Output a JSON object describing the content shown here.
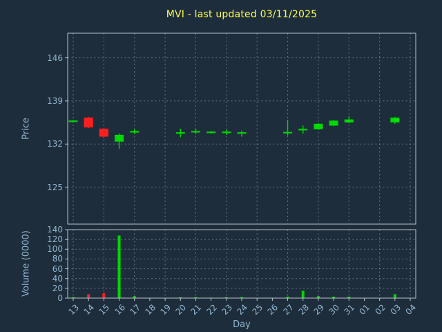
{
  "title": "MVI - last updated 03/11/2025",
  "xlabel": "Day",
  "price_chart": {
    "ylabel": "Price",
    "yticks": [
      125,
      132,
      139,
      146
    ],
    "ylim": [
      119,
      150
    ]
  },
  "volume_chart": {
    "ylabel": "Volume (0000)",
    "yticks": [
      0,
      20,
      40,
      60,
      80,
      100,
      120,
      140
    ],
    "ylim": [
      0,
      140
    ]
  },
  "colors": {
    "bg": "#1e2d3b",
    "title": "#ffff4a",
    "tick": "#92b8d4",
    "grid": "#9fb0bf",
    "frame": "#b9c4cd",
    "up": "#00d900",
    "down": "#ff1f1f"
  },
  "chart_data": {
    "type": "candlestick_with_volume",
    "title": "MVI - last updated 03/11/2025",
    "xlabel": "Day",
    "x_categories": [
      "13",
      "14",
      "15",
      "16",
      "17",
      "18",
      "19",
      "20",
      "21",
      "22",
      "23",
      "24",
      "25",
      "26",
      "27",
      "28",
      "29",
      "30",
      "31",
      "01",
      "02",
      "03",
      "04"
    ],
    "grid": "dashed, vertical lines every other day tick, horizontal lines at all y ticks",
    "legend": "none",
    "series": [
      {
        "day": "13",
        "open": 135.7,
        "high": 135.9,
        "low": 135.5,
        "close": 135.7,
        "volume": 2
      },
      {
        "day": "14",
        "open": 136.3,
        "high": 136.4,
        "low": 134.6,
        "close": 134.7,
        "volume": 8
      },
      {
        "day": "15",
        "open": 134.5,
        "high": 134.6,
        "low": 132.9,
        "close": 133.2,
        "volume": 10
      },
      {
        "day": "16",
        "open": 132.4,
        "high": 133.7,
        "low": 131.2,
        "close": 133.5,
        "volume": 128
      },
      {
        "day": "17",
        "open": 134.0,
        "high": 134.4,
        "low": 133.6,
        "close": 134.0,
        "volume": 4
      },
      {
        "day": "20",
        "open": 133.8,
        "high": 134.5,
        "low": 133.1,
        "close": 133.8,
        "volume": 2
      },
      {
        "day": "21",
        "open": 134.0,
        "high": 134.5,
        "low": 133.6,
        "close": 134.0,
        "volume": 2
      },
      {
        "day": "22",
        "open": 133.9,
        "high": 134.1,
        "low": 133.7,
        "close": 133.9,
        "volume": 1
      },
      {
        "day": "23",
        "open": 133.9,
        "high": 134.3,
        "low": 133.5,
        "close": 133.9,
        "volume": 2
      },
      {
        "day": "24",
        "open": 133.8,
        "high": 134.2,
        "low": 133.2,
        "close": 133.8,
        "volume": 2
      },
      {
        "day": "27",
        "open": 133.8,
        "high": 135.9,
        "low": 133.4,
        "close": 133.9,
        "volume": 3
      },
      {
        "day": "28",
        "open": 134.3,
        "high": 135.0,
        "low": 133.7,
        "close": 134.4,
        "volume": 15
      },
      {
        "day": "29",
        "open": 134.4,
        "high": 135.4,
        "low": 134.3,
        "close": 135.3,
        "volume": 4
      },
      {
        "day": "30",
        "open": 135.0,
        "high": 135.9,
        "low": 134.9,
        "close": 135.8,
        "volume": 3
      },
      {
        "day": "31",
        "open": 135.5,
        "high": 136.5,
        "low": 135.4,
        "close": 136.0,
        "volume": 3
      },
      {
        "day": "03",
        "open": 135.5,
        "high": 136.4,
        "low": 135.3,
        "close": 136.3,
        "volume": 8
      }
    ]
  }
}
